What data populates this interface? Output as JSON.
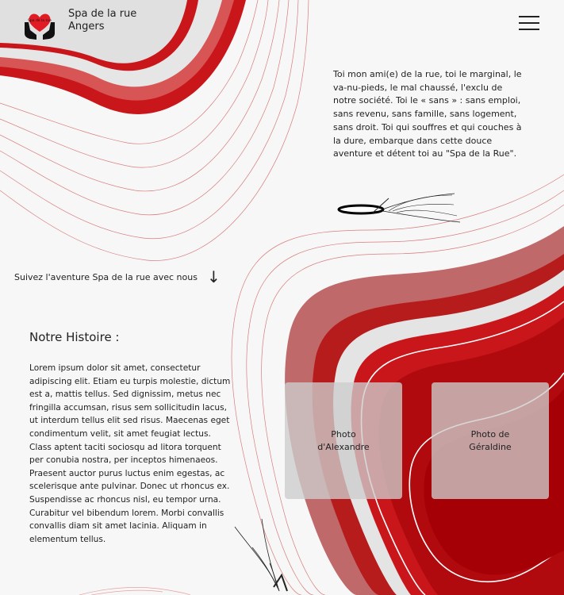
{
  "header": {
    "brand_line1": "Spa de la rue",
    "brand_line2": "Angers",
    "logo_text": "Spa de la rue",
    "logo_icon": "hands-heart-logo",
    "menu_icon": "hamburger-menu-icon"
  },
  "intro": {
    "text": "Toi mon ami(e) de la rue, toi le marginal, le va-nu-pieds, le mal chaussé, l'exclu de notre société. Toi le « sans » : sans emploi, sans revenu, sans famille, sans logement, sans droit. Toi qui souffres et qui couches à la dure, embarque dans cette douce aventure et détent toi au \"Spa de la Rue\"."
  },
  "follow": {
    "label": "Suivez l'aventure Spa de la rue avec nous",
    "arrow": "↓"
  },
  "history": {
    "title": "Notre Histoire :",
    "body": "Lorem ipsum dolor sit amet, consectetur adipiscing elit. Etiam eu turpis molestie, dictum est a, mattis tellus. Sed dignissim, metus nec fringilla accumsan, risus sem sollicitudin lacus, ut interdum tellus elit sed risus. Maecenas eget condimentum velit, sit amet feugiat lectus. Class aptent taciti sociosqu ad litora torquent per conubia nostra, per inceptos himenaeos. Praesent auctor purus luctus enim egestas, ac scelerisque ante pulvinar. Donec ut rhoncus ex. Suspendisse ac rhoncus nisl, eu tempor urna. Curabitur vel bibendum lorem. Morbi convallis convallis diam sit amet lacinia. Aliquam in elementum tellus."
  },
  "photos": {
    "alexandre_line1": "Photo",
    "alexandre_line2": "d'Alexandre",
    "geraldine_line1": "Photo de",
    "geraldine_line2": "Géraldine"
  },
  "colors": {
    "accent_red": "#c8161b",
    "deep_red": "#a50006",
    "line_red": "#c64a4a",
    "background": "#f7f7f7"
  }
}
